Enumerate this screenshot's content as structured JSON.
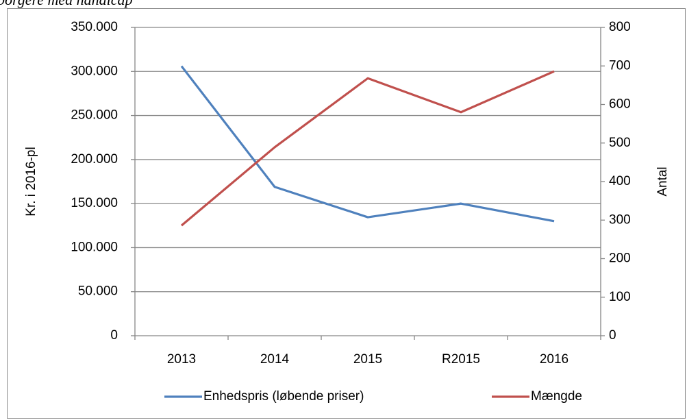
{
  "caption": "borgere med handicap",
  "chart_data": {
    "type": "line",
    "categories": [
      "2013",
      "2014",
      "2015",
      "R2015",
      "2016"
    ],
    "series": [
      {
        "name": "Enhedspris (løbende priser)",
        "color": "#4f81bd",
        "values": [
          306000,
          169000,
          134500,
          150000,
          130000
        ]
      },
      {
        "name": "Mængde",
        "color": "#c0504d",
        "axis": "y2",
        "values": [
          286,
          489,
          668,
          580,
          686
        ]
      }
    ],
    "ylabel": "Kr. i 2016-pl",
    "y2label": "Antal",
    "ylim": [
      0,
      350000
    ],
    "yticks": [
      0,
      {
        "value": 50000,
        "label": "50.000"
      },
      {
        "value": 100000,
        "label": "100.000"
      },
      {
        "value": 150000,
        "label": "150.000"
      },
      {
        "value": 200000,
        "label": "200.000"
      },
      {
        "value": 250000,
        "label": "250.000"
      },
      {
        "value": 300000,
        "label": "300.000"
      },
      {
        "value": 350000,
        "label": "350.000"
      }
    ],
    "y2lim": [
      0,
      800
    ],
    "y2ticks": [
      0,
      100,
      200,
      300,
      400,
      500,
      600,
      700,
      800
    ],
    "grid": true,
    "legend": "bottom"
  }
}
